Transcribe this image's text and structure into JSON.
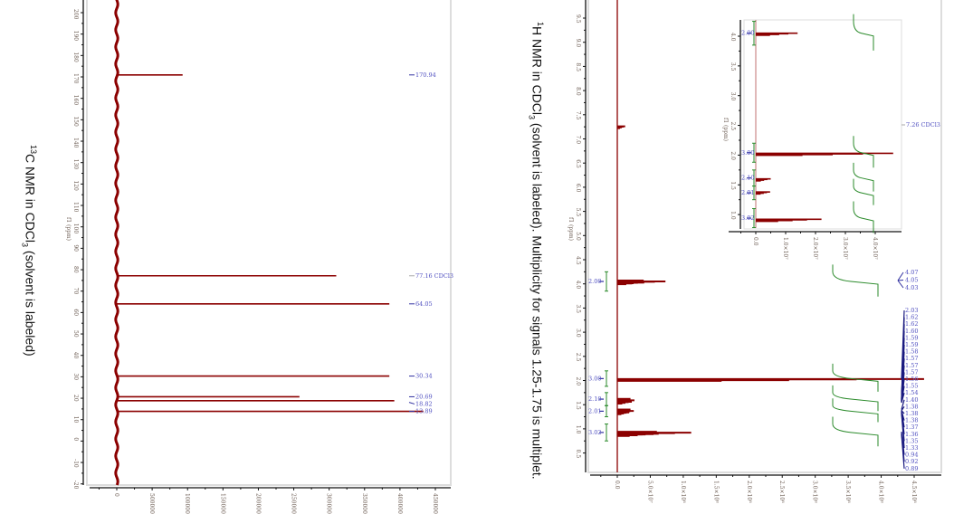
{
  "captions": {
    "c13": {
      "sup": "13",
      "main": "C NMR in CDCl",
      "sub": "3",
      "rest": " (solvent is labeled)"
    },
    "h1": {
      "sup": "1",
      "main": "H NMR in CDCl",
      "sub": "3",
      "rest": " (solvent is labeled). Multiplicity for signals 1.25-1.75 is multiplet."
    }
  },
  "colors": {
    "spectrum": "#8b0000",
    "peak_label": "#5050c0",
    "solvent_label": "#aaaaaa",
    "integral": "#2a8a2a",
    "axis": "#111111"
  },
  "chart_data": [
    {
      "type": "line",
      "name": "13C spectrum",
      "ylabel": "f1 (ppm)",
      "ppm_range": [
        200,
        -20
      ],
      "intensity_range": [
        0,
        4500000
      ],
      "ppm_ticks": [
        "200",
        "190",
        "180",
        "170",
        "160",
        "150",
        "140",
        "130",
        "120",
        "110",
        "100",
        "90",
        "80",
        "70",
        "60",
        "50",
        "40",
        "30",
        "20",
        "10",
        "0",
        "-10",
        "-20"
      ],
      "intensity_ticks": [
        "0",
        "500000",
        "1000000",
        "1500000",
        "2000000",
        "2500000",
        "3000000",
        "3500000",
        "4000000",
        "4500000"
      ],
      "peaks": [
        {
          "ppm": 170.94,
          "intensity": 930000
        },
        {
          "ppm": 77.16,
          "intensity": 3100000
        },
        {
          "ppm": 64.05,
          "intensity": 3850000
        },
        {
          "ppm": 30.34,
          "intensity": 3850000
        },
        {
          "ppm": 20.69,
          "intensity": 2580000
        },
        {
          "ppm": 18.82,
          "intensity": 3920000
        },
        {
          "ppm": 13.89,
          "intensity": 4330000
        }
      ],
      "peak_labels": [
        "170.94",
        "77.16 CDCl3",
        "64.05",
        "30.34",
        "20.69",
        "18.82",
        "13.89"
      ],
      "solvent_label": "77.16 CDCl3"
    },
    {
      "type": "line",
      "name": "1H spectrum",
      "ylabel": "f1 (ppm)",
      "ppm_range": [
        9.5,
        0.1
      ],
      "intensity_range": [
        0,
        450000000
      ],
      "ppm_ticks": [
        "9.5",
        "9.0",
        "8.5",
        "8.0",
        "7.5",
        "7.0",
        "6.5",
        "6.0",
        "5.5",
        "5.0",
        "4.5",
        "4.0",
        "3.5",
        "3.0",
        "2.5",
        "2.0",
        "1.5",
        "1.0",
        "0.5"
      ],
      "intensity_ticks": [
        "0.0",
        "5.0×10⁷",
        "1.0×10⁸",
        "1.5×10⁸",
        "2.0×10⁸",
        "2.5×10⁸",
        "3.0×10⁸",
        "3.5×10⁸",
        "4.0×10⁸",
        "4.5×10⁸"
      ],
      "peaks": [
        {
          "ppm": 7.26,
          "intensity": 12000000
        },
        {
          "ppm": 4.07,
          "intensity": 40000000
        },
        {
          "ppm": 4.05,
          "intensity": 73000000
        },
        {
          "ppm": 4.03,
          "intensity": 40000000
        },
        {
          "ppm": 2.03,
          "intensity": 465000000
        },
        {
          "ppm": 1.62,
          "intensity": 20000000
        },
        {
          "ppm": 1.59,
          "intensity": 26000000
        },
        {
          "ppm": 1.56,
          "intensity": 22000000
        },
        {
          "ppm": 1.4,
          "intensity": 20000000
        },
        {
          "ppm": 1.37,
          "intensity": 25000000
        },
        {
          "ppm": 1.34,
          "intensity": 18000000
        },
        {
          "ppm": 0.94,
          "intensity": 60000000
        },
        {
          "ppm": 0.92,
          "intensity": 112000000
        },
        {
          "ppm": 0.89,
          "intensity": 55000000
        }
      ],
      "integrals": [
        {
          "from": 4.25,
          "to": 3.85,
          "value": "2.00"
        },
        {
          "from": 2.2,
          "to": 1.88,
          "value": "3.00"
        },
        {
          "from": 1.75,
          "to": 1.48,
          "value": "2.10"
        },
        {
          "from": 1.48,
          "to": 1.25,
          "value": "2.01"
        },
        {
          "from": 1.1,
          "to": 0.75,
          "value": "3.02"
        }
      ],
      "peak_labels_group1": [
        "4.07",
        "4.05",
        "4.03"
      ],
      "peak_labels_group2": [
        "2.03",
        "1.62",
        "1.62",
        "1.60",
        "1.59",
        "1.59",
        "1.58",
        "1.57",
        "1.57",
        "1.57",
        "1.56",
        "1.55",
        "1.54",
        "1.40",
        "1.38",
        "1.38",
        "1.38",
        "1.37",
        "1.36",
        "1.35",
        "1.33",
        "0.94",
        "0.92",
        "0.89"
      ]
    },
    {
      "type": "line",
      "name": "1H inset",
      "ylabel": "f1 (ppm)",
      "ppm_range": [
        4.3,
        0.75
      ],
      "intensity_range": [
        0,
        48000000
      ],
      "ppm_ticks": [
        "4.0",
        "3.5",
        "3.0",
        "2.5",
        "2.0",
        "1.5",
        "1.0"
      ],
      "intensity_ticks": [
        "0.0",
        "1.0×10⁷",
        "2.0×10⁷",
        "3.0×10⁷",
        "4.0×10⁷"
      ],
      "peaks": [
        {
          "ppm": 4.05,
          "intensity": 14000000
        },
        {
          "ppm": 2.03,
          "intensity": 46000000
        },
        {
          "ppm": 1.6,
          "intensity": 5000000
        },
        {
          "ppm": 1.38,
          "intensity": 4800000
        },
        {
          "ppm": 0.92,
          "intensity": 22000000
        }
      ],
      "integrals": [
        {
          "from": 4.25,
          "to": 3.85,
          "value": "2.00"
        },
        {
          "from": 2.2,
          "to": 1.88,
          "value": "3.00"
        },
        {
          "from": 1.75,
          "to": 1.48,
          "value": "2.10"
        },
        {
          "from": 1.48,
          "to": 1.25,
          "value": "2.01"
        },
        {
          "from": 1.1,
          "to": 0.78,
          "value": "3.02"
        }
      ],
      "solvent_label": "7.26 CDCl3"
    }
  ]
}
